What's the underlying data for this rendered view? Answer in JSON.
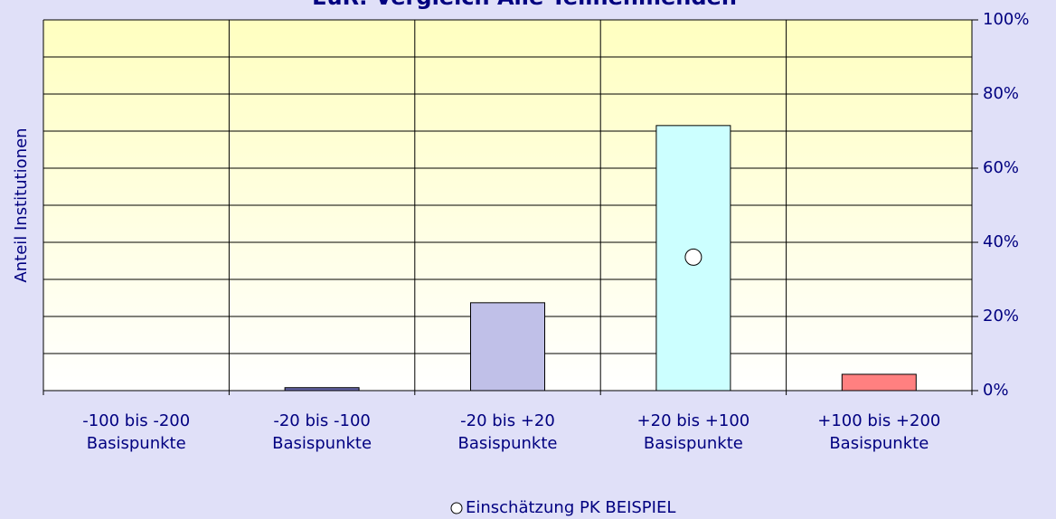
{
  "chart_data": {
    "type": "bar",
    "title": "EuR: Vergleich Alle Teilnehmenden",
    "y_label": "Anteil Institutionen",
    "categories": [
      [
        "-100 bis -200",
        "Basispunkte"
      ],
      [
        "-20 bis -100",
        "Basispunkte"
      ],
      [
        "-20 bis +20",
        "Basispunkte"
      ],
      [
        "+20 bis +100",
        "Basispunkte"
      ],
      [
        "+100 bis +200",
        "Basispunkte"
      ]
    ],
    "values": [
      0,
      0.8,
      23.7,
      71.5,
      4.4
    ],
    "colors": [
      "#9999cc",
      "#6666aa",
      "#c0c0e8",
      "#ccffff",
      "#ff8080"
    ],
    "markers": {
      "name": "Einschätzung PK BEISPIEL",
      "color": "#ffffff",
      "values": [
        null,
        null,
        null,
        36,
        null
      ]
    },
    "ylim": [
      0,
      100
    ],
    "yticks": [
      {
        "value": 0,
        "label": "0%"
      },
      {
        "value": 20,
        "label": "20%"
      },
      {
        "value": 40,
        "label": "40%"
      },
      {
        "value": 60,
        "label": "60%"
      },
      {
        "value": 80,
        "label": "80%"
      },
      {
        "value": 100,
        "label": "100%"
      }
    ],
    "grid": true
  }
}
